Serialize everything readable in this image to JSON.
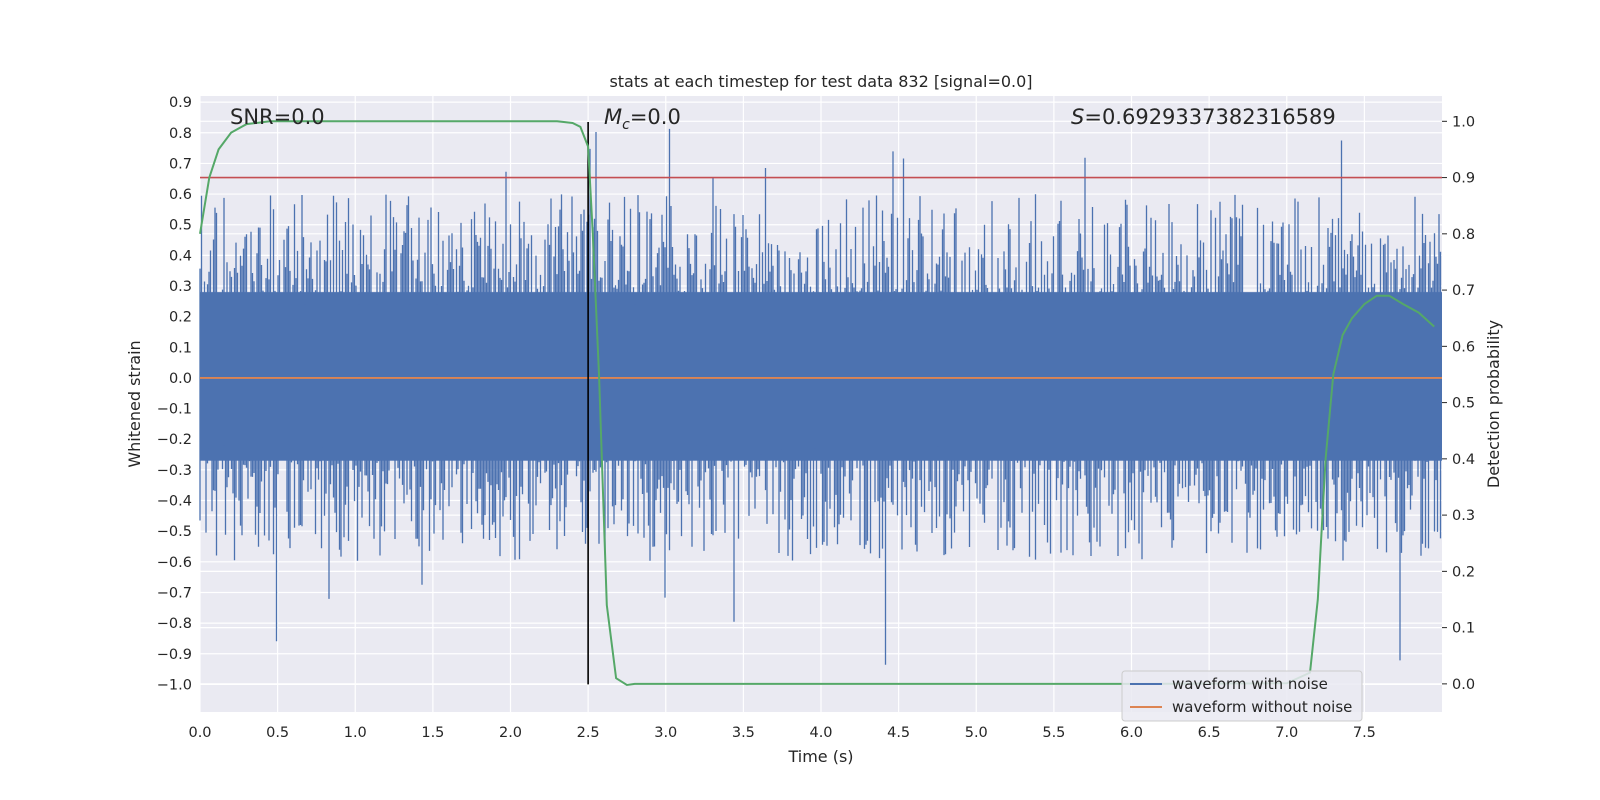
{
  "chart_data": {
    "type": "line",
    "title": "stats at each timestep for test data 832 [signal=0.0]",
    "xlabel": "Time (s)",
    "ylabel": "Whitened strain",
    "y2label": "Detection probability",
    "xlim": [
      0.0,
      8.0
    ],
    "ylim": [
      -1.09,
      0.92
    ],
    "y2lim": [
      -0.05,
      1.045
    ],
    "xticks": [
      0.0,
      0.5,
      1.0,
      1.5,
      2.0,
      2.5,
      3.0,
      3.5,
      4.0,
      4.5,
      5.0,
      5.5,
      6.0,
      6.5,
      7.0,
      7.5
    ],
    "xtick_labels": [
      "0.0",
      "0.5",
      "1.0",
      "1.5",
      "2.0",
      "2.5",
      "3.0",
      "3.5",
      "4.0",
      "4.5",
      "5.0",
      "5.5",
      "6.0",
      "6.5",
      "7.0",
      "7.5"
    ],
    "yticks": [
      0.9,
      0.8,
      0.7,
      0.6,
      0.5,
      0.4,
      0.3,
      0.2,
      0.1,
      0.0,
      -0.1,
      -0.2,
      -0.3,
      -0.4,
      -0.5,
      -0.6,
      -0.7,
      -0.8,
      -0.9,
      -1.0
    ],
    "ytick_labels": [
      "0.9",
      "0.8",
      "0.7",
      "0.6",
      "0.5",
      "0.4",
      "0.3",
      "0.2",
      "0.1",
      "0.0",
      "−0.1",
      "−0.2",
      "−0.3",
      "−0.4",
      "−0.5",
      "−0.6",
      "−0.7",
      "−0.8",
      "−0.9",
      "−1.0"
    ],
    "y2ticks": [
      1.0,
      0.9,
      0.8,
      0.7,
      0.6,
      0.5,
      0.4,
      0.3,
      0.2,
      0.1,
      0.0
    ],
    "y2tick_labels": [
      "1.0",
      "0.9",
      "0.8",
      "0.7",
      "0.6",
      "0.5",
      "0.4",
      "0.3",
      "0.2",
      "0.1",
      "0.0"
    ],
    "annotations": [
      {
        "text": "SNR=0.0",
        "x": 0.2
      },
      {
        "text_main": "M",
        "text_sub": "c",
        "text_rest": "=0.0",
        "x": 2.6
      },
      {
        "text_main": "S",
        "text_rest": "=0.6929337382316589",
        "x": 5.6
      }
    ],
    "series": [
      {
        "name": "waveform with noise",
        "color": "#4c72b0",
        "kind": "noise",
        "band_low": -0.27,
        "band_high": 0.28,
        "spike_max": 0.84,
        "spike_min": -1.0
      },
      {
        "name": "waveform without noise",
        "color": "#dd8452",
        "kind": "constant",
        "value": 0.0
      },
      {
        "name": "detection probability",
        "color": "#55a868",
        "axis": "right",
        "x": [
          0.0,
          0.06,
          0.12,
          0.2,
          0.3,
          0.45,
          0.7,
          1.5,
          2.0,
          2.3,
          2.4,
          2.45,
          2.5,
          2.53,
          2.57,
          2.62,
          2.68,
          2.75,
          2.8,
          3.0,
          4.0,
          5.0,
          6.0,
          7.0,
          7.15,
          7.2,
          7.25,
          7.3,
          7.36,
          7.42,
          7.5,
          7.58,
          7.66,
          7.75,
          7.85,
          7.95
        ],
        "y": [
          0.8,
          0.9,
          0.95,
          0.98,
          0.995,
          1.0,
          1.0,
          1.0,
          1.0,
          1.0,
          0.997,
          0.99,
          0.955,
          0.8,
          0.55,
          0.14,
          0.01,
          -0.002,
          0.0,
          0.0,
          0.0,
          0.0,
          0.0,
          0.001,
          0.02,
          0.15,
          0.4,
          0.55,
          0.62,
          0.65,
          0.675,
          0.69,
          0.69,
          0.675,
          0.66,
          0.635
        ]
      }
    ],
    "hlines": [
      {
        "y2": 0.9,
        "color": "#c44e52"
      }
    ],
    "vlines": [
      {
        "x": 2.5,
        "color": "#000000",
        "ymin": -1.0,
        "ymax": 0.835
      }
    ],
    "legend": {
      "position": "lower-right",
      "entries": [
        "waveform with noise",
        "waveform without noise"
      ]
    }
  }
}
